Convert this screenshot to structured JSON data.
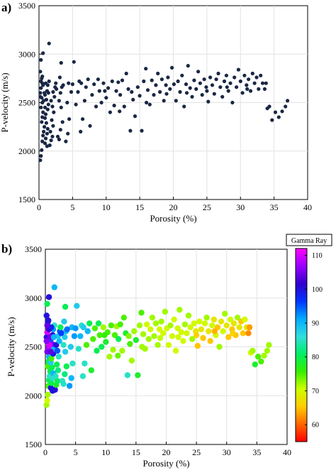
{
  "chart_data": [
    {
      "type": "scatter",
      "panel_label": "a)",
      "xlabel": "Porosity (%)",
      "ylabel": "P-velocity (m/s)",
      "xlim": [
        0,
        40
      ],
      "ylim": [
        1500,
        3500
      ],
      "xticks": [
        0,
        5,
        10,
        15,
        20,
        25,
        30,
        35,
        40
      ],
      "yticks": [
        1500,
        2000,
        2500,
        3000,
        3500
      ],
      "grid": true,
      "marker_color": "#1a2744",
      "points_description_source": "shared data points",
      "color_by": null
    },
    {
      "type": "scatter",
      "panel_label": "b)",
      "xlabel": "Porosity (%)",
      "ylabel": "P-velocity (m/s)",
      "xlim": [
        0,
        40
      ],
      "ylim": [
        1500,
        3500
      ],
      "xticks": [
        0,
        5,
        10,
        15,
        20,
        25,
        30,
        35,
        40
      ],
      "yticks": [
        1500,
        2000,
        2500,
        3000,
        3500
      ],
      "grid": true,
      "colorbar": {
        "title": "Gamma Ray",
        "range": [
          55,
          112
        ],
        "ticks": [
          60,
          70,
          80,
          90,
          100,
          110
        ],
        "colormap": [
          "#ff0000",
          "#ff6600",
          "#ffcc00",
          "#ccff00",
          "#33ee00",
          "#00ee66",
          "#33dddd",
          "#00aaff",
          "#0033ff",
          "#3300cc",
          "#9900ff",
          "#ff00ff"
        ]
      }
    }
  ],
  "points": [
    [
      0.2,
      1905,
      72
    ],
    [
      0.3,
      1950,
      70
    ],
    [
      0.4,
      2010,
      72
    ],
    [
      0.5,
      2100,
      75
    ],
    [
      0.6,
      2160,
      80
    ],
    [
      0.7,
      2200,
      85
    ],
    [
      0.8,
      2250,
      80
    ],
    [
      0.4,
      2300,
      75
    ],
    [
      0.5,
      2350,
      80
    ],
    [
      0.6,
      2400,
      90
    ],
    [
      0.3,
      2450,
      105
    ],
    [
      0.5,
      2500,
      108
    ],
    [
      0.4,
      2550,
      105
    ],
    [
      0.2,
      2600,
      100
    ],
    [
      0.3,
      2650,
      110
    ],
    [
      0.5,
      2700,
      108
    ],
    [
      0.4,
      2750,
      100
    ],
    [
      0.2,
      2820,
      100
    ],
    [
      0.3,
      2940,
      80
    ],
    [
      0.6,
      3010,
      100
    ],
    [
      1.5,
      3110,
      90
    ],
    [
      0.9,
      2080,
      100
    ],
    [
      1.0,
      2130,
      80
    ],
    [
      1.2,
      2180,
      85
    ],
    [
      1.3,
      2230,
      90
    ],
    [
      1.1,
      2290,
      80
    ],
    [
      0.9,
      2340,
      88
    ],
    [
      1.0,
      2380,
      75
    ],
    [
      1.3,
      2430,
      100
    ],
    [
      1.4,
      2480,
      90
    ],
    [
      1.1,
      2530,
      105
    ],
    [
      0.9,
      2580,
      95
    ],
    [
      1.2,
      2620,
      100
    ],
    [
      1.3,
      2680,
      92
    ],
    [
      1.5,
      2720,
      85
    ],
    [
      1.6,
      2060,
      100
    ],
    [
      1.8,
      2110,
      78
    ],
    [
      2.0,
      2150,
      80
    ],
    [
      1.7,
      2200,
      85
    ],
    [
      2.1,
      2260,
      82
    ],
    [
      1.9,
      2320,
      80
    ],
    [
      2.2,
      2400,
      85
    ],
    [
      2.0,
      2460,
      95
    ],
    [
      1.8,
      2520,
      100
    ],
    [
      2.3,
      2560,
      90
    ],
    [
      2.1,
      2610,
      88
    ],
    [
      2.4,
      2660,
      95
    ],
    [
      2.5,
      2700,
      80
    ],
    [
      2.8,
      2150,
      85
    ],
    [
      3.0,
      2120,
      85
    ],
    [
      3.2,
      2220,
      82
    ],
    [
      3.5,
      2300,
      80
    ],
    [
      3.3,
      2450,
      88
    ],
    [
      3.0,
      2520,
      85
    ],
    [
      3.2,
      2600,
      88
    ],
    [
      3.4,
      2660,
      90
    ],
    [
      3.1,
      2760,
      88
    ],
    [
      3.3,
      2910,
      80
    ],
    [
      4.0,
      2100,
      92
    ],
    [
      4.3,
      2180,
      90
    ],
    [
      4.5,
      2330,
      85
    ],
    [
      4.2,
      2500,
      88
    ],
    [
      4.8,
      2610,
      92
    ],
    [
      4.4,
      2700,
      90
    ],
    [
      5.2,
      2920,
      88
    ],
    [
      5.5,
      2480,
      85
    ],
    [
      5.8,
      2610,
      90
    ],
    [
      6.0,
      2720,
      85
    ],
    [
      6.2,
      2200,
      85
    ],
    [
      6.5,
      2330,
      85
    ],
    [
      6.8,
      2520,
      75
    ],
    [
      7.0,
      2660,
      90
    ],
    [
      7.3,
      2740,
      80
    ],
    [
      7.6,
      2260,
      78
    ],
    [
      7.9,
      2580,
      75
    ],
    [
      8.2,
      2690,
      75
    ],
    [
      8.5,
      2460,
      80
    ],
    [
      8.8,
      2740,
      80
    ],
    [
      9.0,
      2620,
      75
    ],
    [
      9.3,
      2500,
      80
    ],
    [
      9.6,
      2700,
      72
    ],
    [
      10.0,
      2550,
      78
    ],
    [
      10.3,
      2650,
      75
    ],
    [
      10.6,
      2400,
      72
    ],
    [
      10.9,
      2720,
      75
    ],
    [
      11.2,
      2470,
      72
    ],
    [
      11.5,
      2620,
      75
    ],
    [
      11.8,
      2710,
      72
    ],
    [
      12.1,
      2580,
      80
    ],
    [
      12.4,
      2730,
      75
    ],
    [
      12.7,
      2460,
      72
    ],
    [
      13.0,
      2800,
      75
    ],
    [
      13.3,
      2640,
      78
    ],
    [
      13.6,
      2210,
      85
    ],
    [
      14.0,
      2530,
      75
    ],
    [
      14.3,
      2360,
      72
    ],
    [
      14.7,
      2660,
      72
    ],
    [
      15.0,
      2570,
      78
    ],
    [
      15.3,
      2210,
      78
    ],
    [
      15.6,
      2720,
      72
    ],
    [
      15.9,
      2850,
      75
    ],
    [
      16.2,
      2630,
      72
    ],
    [
      16.5,
      2480,
      72
    ],
    [
      16.8,
      2730,
      70
    ],
    [
      17.1,
      2580,
      72
    ],
    [
      17.4,
      2680,
      70
    ],
    [
      17.7,
      2800,
      72
    ],
    [
      18.0,
      2610,
      72
    ],
    [
      18.3,
      2740,
      72
    ],
    [
      18.6,
      2520,
      72
    ],
    [
      18.9,
      2680,
      70
    ],
    [
      19.2,
      2760,
      72
    ],
    [
      19.5,
      2640,
      70
    ],
    [
      19.8,
      2860,
      72
    ],
    [
      20.1,
      2690,
      70
    ],
    [
      20.4,
      2520,
      70
    ],
    [
      20.7,
      2720,
      72
    ],
    [
      21.0,
      2610,
      70
    ],
    [
      21.3,
      2780,
      70
    ],
    [
      21.6,
      2460,
      70
    ],
    [
      21.9,
      2690,
      70
    ],
    [
      22.2,
      2880,
      72
    ],
    [
      22.5,
      2650,
      70
    ],
    [
      22.8,
      2560,
      70
    ],
    [
      23.1,
      2730,
      72
    ],
    [
      23.4,
      2640,
      70
    ],
    [
      23.7,
      2820,
      72
    ],
    [
      24.0,
      2700,
      70
    ],
    [
      24.3,
      2580,
      72
    ],
    [
      24.6,
      2740,
      70
    ],
    [
      24.9,
      2660,
      68
    ],
    [
      25.2,
      2510,
      65
    ],
    [
      25.5,
      2760,
      70
    ],
    [
      25.8,
      2680,
      68
    ],
    [
      26.1,
      2590,
      65
    ],
    [
      26.4,
      2740,
      70
    ],
    [
      26.7,
      2800,
      72
    ],
    [
      27.0,
      2660,
      68
    ],
    [
      27.3,
      2560,
      65
    ],
    [
      27.6,
      2720,
      70
    ],
    [
      27.9,
      2780,
      68
    ],
    [
      28.2,
      2620,
      70
    ],
    [
      28.5,
      2700,
      65
    ],
    [
      28.8,
      2500,
      72
    ],
    [
      29.1,
      2760,
      68
    ],
    [
      29.4,
      2660,
      70
    ],
    [
      29.7,
      2840,
      72
    ],
    [
      30.0,
      2720,
      68
    ],
    [
      30.3,
      2600,
      65
    ],
    [
      30.6,
      2780,
      70
    ],
    [
      30.9,
      2680,
      65
    ],
    [
      31.2,
      2740,
      68
    ],
    [
      31.5,
      2620,
      65
    ],
    [
      31.8,
      2800,
      72
    ],
    [
      32.1,
      2700,
      68
    ],
    [
      32.4,
      2760,
      65
    ],
    [
      32.7,
      2640,
      65
    ],
    [
      33.0,
      2780,
      70
    ],
    [
      33.3,
      2700,
      68
    ],
    [
      33.6,
      2640,
      62
    ],
    [
      34.0,
      2440,
      70
    ],
    [
      34.3,
      2460,
      72
    ],
    [
      34.7,
      2320,
      78
    ],
    [
      35.2,
      2400,
      75
    ],
    [
      35.7,
      2350,
      75
    ],
    [
      36.2,
      2410,
      72
    ],
    [
      36.7,
      2460,
      72
    ],
    [
      37.0,
      2520,
      72
    ],
    [
      1.2,
      2050,
      100
    ],
    [
      0.8,
      2600,
      105
    ],
    [
      0.6,
      2680,
      102
    ],
    [
      0.7,
      2520,
      110
    ],
    [
      0.9,
      2450,
      104
    ],
    [
      1.0,
      2700,
      98
    ],
    [
      0.3,
      2720,
      104
    ],
    [
      0.5,
      2770,
      100
    ],
    [
      0.2,
      2560,
      106
    ],
    [
      1.4,
      2600,
      90
    ],
    [
      2.6,
      2640,
      96
    ],
    [
      3.6,
      2680,
      94
    ],
    [
      5.0,
      2690,
      92
    ],
    [
      6.3,
      2700,
      88
    ],
    [
      9.8,
      2620,
      76
    ],
    [
      12.0,
      2410,
      74
    ],
    [
      13.8,
      2610,
      73
    ],
    [
      16.0,
      2500,
      72
    ],
    [
      19.0,
      2590,
      71
    ],
    [
      22.0,
      2600,
      70
    ],
    [
      25.0,
      2620,
      66
    ],
    [
      28.0,
      2660,
      64
    ],
    [
      31.0,
      2640,
      66
    ],
    [
      33.8,
      2700,
      63
    ]
  ]
}
